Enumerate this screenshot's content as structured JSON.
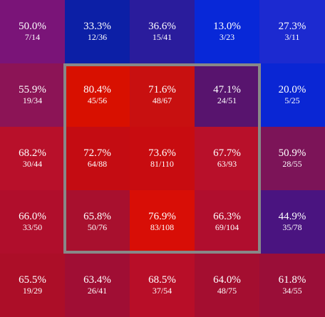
{
  "chart_data": {
    "type": "heatmap",
    "rows": 5,
    "cols": 5,
    "cells": [
      [
        {
          "pct": "50.0%",
          "frac": "7/14",
          "value": 50.0,
          "color": "#7a1478"
        },
        {
          "pct": "33.3%",
          "frac": "12/36",
          "value": 33.3,
          "color": "#0c1fa6"
        },
        {
          "pct": "36.6%",
          "frac": "15/41",
          "value": 36.6,
          "color": "#2a1c9c"
        },
        {
          "pct": "13.0%",
          "frac": "3/23",
          "value": 13.0,
          "color": "#0828d8"
        },
        {
          "pct": "27.3%",
          "frac": "3/11",
          "value": 27.3,
          "color": "#1c2ad0"
        }
      ],
      [
        {
          "pct": "55.9%",
          "frac": "19/34",
          "value": 55.9,
          "color": "#8c1456"
        },
        {
          "pct": "80.4%",
          "frac": "45/56",
          "value": 80.4,
          "color": "#d81000"
        },
        {
          "pct": "71.6%",
          "frac": "48/67",
          "value": 71.6,
          "color": "#c81010"
        },
        {
          "pct": "47.1%",
          "frac": "24/51",
          "value": 47.1,
          "color": "#58146e"
        },
        {
          "pct": "20.0%",
          "frac": "5/25",
          "value": 20.0,
          "color": "#0a26d4"
        }
      ],
      [
        {
          "pct": "68.2%",
          "frac": "30/44",
          "value": 68.2,
          "color": "#b8102a"
        },
        {
          "pct": "72.7%",
          "frac": "64/88",
          "value": 72.7,
          "color": "#c40c12"
        },
        {
          "pct": "73.6%",
          "frac": "81/110",
          "value": 73.6,
          "color": "#c80c10"
        },
        {
          "pct": "67.7%",
          "frac": "63/93",
          "value": 67.7,
          "color": "#b8102a"
        },
        {
          "pct": "50.9%",
          "frac": "28/55",
          "value": 50.9,
          "color": "#7c1458"
        }
      ],
      [
        {
          "pct": "66.0%",
          "frac": "33/50",
          "value": 66.0,
          "color": "#b00e2c"
        },
        {
          "pct": "65.8%",
          "frac": "50/76",
          "value": 65.8,
          "color": "#a8102e"
        },
        {
          "pct": "76.9%",
          "frac": "83/108",
          "value": 76.9,
          "color": "#d80e06"
        },
        {
          "pct": "66.3%",
          "frac": "69/104",
          "value": 66.3,
          "color": "#b00e2e"
        },
        {
          "pct": "44.9%",
          "frac": "35/78",
          "value": 44.9,
          "color": "#4a1480"
        }
      ],
      [
        {
          "pct": "65.5%",
          "frac": "19/29",
          "value": 65.5,
          "color": "#ac0e28"
        },
        {
          "pct": "63.4%",
          "frac": "26/41",
          "value": 63.4,
          "color": "#a00e34"
        },
        {
          "pct": "68.5%",
          "frac": "37/54",
          "value": 68.5,
          "color": "#b80e28"
        },
        {
          "pct": "64.0%",
          "frac": "48/75",
          "value": 64.0,
          "color": "#a40e30"
        },
        {
          "pct": "61.8%",
          "frac": "34/55",
          "value": 61.8,
          "color": "#9a0e38"
        }
      ]
    ],
    "highlight": {
      "row_start": 1,
      "row_end": 3,
      "col_start": 1,
      "col_end": 3,
      "border_color": "#888888"
    },
    "legend": false,
    "grid": false
  }
}
